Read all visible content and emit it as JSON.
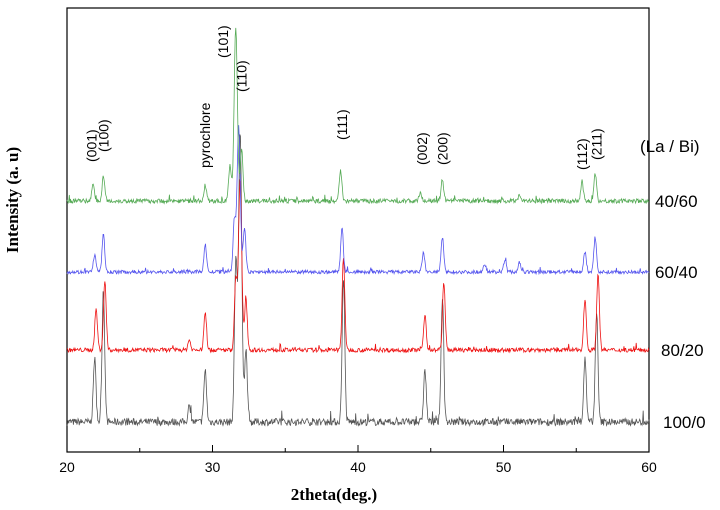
{
  "chart_data": {
    "type": "line",
    "title": "",
    "xlabel": "2theta(deg.)",
    "ylabel": "Intensity (a. u)",
    "xlim": [
      20,
      60
    ],
    "x_ticks": [
      20,
      30,
      40,
      50,
      60
    ],
    "y_ticks_labeled": false,
    "grid": false,
    "legend_title": "(La / Bi)",
    "peaks": [
      {
        "x": 21.7,
        "label": "(001)"
      },
      {
        "x": 22.5,
        "label": "(100)"
      },
      {
        "x": 29.5,
        "label": "pyrochlore"
      },
      {
        "x": 31.6,
        "label": "(101)"
      },
      {
        "x": 32.0,
        "label": "(110)"
      },
      {
        "x": 38.9,
        "label": "(111)"
      },
      {
        "x": 44.4,
        "label": "(002)"
      },
      {
        "x": 45.8,
        "label": "(200)"
      },
      {
        "x": 55.4,
        "label": "(112)"
      },
      {
        "x": 56.4,
        "label": "(211)"
      }
    ],
    "series": [
      {
        "name": "100/0",
        "color": "#555555",
        "peaks": [
          {
            "x": 21.9,
            "h": 0.22
          },
          {
            "x": 22.5,
            "h": 0.46
          },
          {
            "x": 28.4,
            "h": 0.05
          },
          {
            "x": 29.5,
            "h": 0.18
          },
          {
            "x": 31.6,
            "h": 0.55
          },
          {
            "x": 31.9,
            "h": 1.0
          },
          {
            "x": 32.3,
            "h": 0.25
          },
          {
            "x": 39.0,
            "h": 0.5
          },
          {
            "x": 44.6,
            "h": 0.18
          },
          {
            "x": 45.8,
            "h": 0.43
          },
          {
            "x": 55.6,
            "h": 0.22
          },
          {
            "x": 56.4,
            "h": 0.38
          }
        ]
      },
      {
        "name": "80/20",
        "color": "#ee1111",
        "peaks": [
          {
            "x": 22.0,
            "h": 0.24
          },
          {
            "x": 22.6,
            "h": 0.41
          },
          {
            "x": 28.4,
            "h": 0.06
          },
          {
            "x": 29.5,
            "h": 0.22
          },
          {
            "x": 31.6,
            "h": 0.42
          },
          {
            "x": 31.9,
            "h": 1.0
          },
          {
            "x": 32.3,
            "h": 0.3
          },
          {
            "x": 39.0,
            "h": 0.55
          },
          {
            "x": 44.6,
            "h": 0.21
          },
          {
            "x": 45.9,
            "h": 0.4
          },
          {
            "x": 55.6,
            "h": 0.3
          },
          {
            "x": 56.5,
            "h": 0.45
          }
        ]
      },
      {
        "name": "60/40",
        "color": "#5555ee",
        "peaks": [
          {
            "x": 21.9,
            "h": 0.12
          },
          {
            "x": 22.5,
            "h": 0.26
          },
          {
            "x": 29.5,
            "h": 0.19
          },
          {
            "x": 31.5,
            "h": 0.35
          },
          {
            "x": 31.8,
            "h": 1.0
          },
          {
            "x": 32.2,
            "h": 0.3
          },
          {
            "x": 38.9,
            "h": 0.31
          },
          {
            "x": 44.5,
            "h": 0.13
          },
          {
            "x": 45.8,
            "h": 0.24
          },
          {
            "x": 48.7,
            "h": 0.06
          },
          {
            "x": 50.1,
            "h": 0.08
          },
          {
            "x": 51.1,
            "h": 0.07
          },
          {
            "x": 55.6,
            "h": 0.14
          },
          {
            "x": 56.3,
            "h": 0.24
          }
        ]
      },
      {
        "name": "40/60",
        "color": "#55aa55",
        "peaks": [
          {
            "x": 21.8,
            "h": 0.1
          },
          {
            "x": 22.5,
            "h": 0.14
          },
          {
            "x": 29.5,
            "h": 0.09
          },
          {
            "x": 31.2,
            "h": 0.2
          },
          {
            "x": 31.6,
            "h": 1.0
          },
          {
            "x": 32.0,
            "h": 0.3
          },
          {
            "x": 38.8,
            "h": 0.18
          },
          {
            "x": 44.3,
            "h": 0.05
          },
          {
            "x": 45.8,
            "h": 0.12
          },
          {
            "x": 51.1,
            "h": 0.04
          },
          {
            "x": 55.4,
            "h": 0.1
          },
          {
            "x": 56.3,
            "h": 0.16
          }
        ]
      }
    ]
  }
}
